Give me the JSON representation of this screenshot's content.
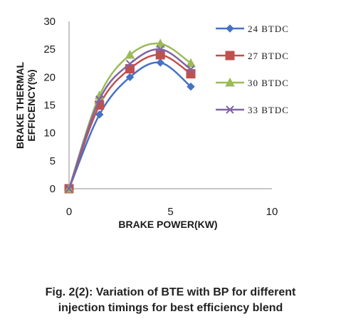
{
  "chart_data": {
    "type": "line",
    "title": "",
    "xlabel": "BRAKE POWER(KW)",
    "ylabel_lines": [
      "BRAKE THERMAL",
      "EFFICENCY(%)"
    ],
    "xlim": [
      0,
      10
    ],
    "ylim": [
      0,
      30
    ],
    "x_ticks": [
      "0",
      "5",
      "10"
    ],
    "y_ticks": [
      "0",
      "5",
      "10",
      "15",
      "20",
      "25",
      "30"
    ],
    "grid": false,
    "legend_position": "right",
    "series": [
      {
        "name": "24 BTDC",
        "color": "#4472C4",
        "marker": "diamond",
        "x": [
          0,
          1.5,
          3,
          4.5,
          6
        ],
        "y": [
          0,
          13.3,
          20,
          22.6,
          18.3
        ]
      },
      {
        "name": "27 BTDC",
        "color": "#C0504D",
        "marker": "square",
        "x": [
          0,
          1.5,
          3,
          4.5,
          6
        ],
        "y": [
          0,
          15,
          21.5,
          24,
          20.6
        ]
      },
      {
        "name": "30 BTDC",
        "color": "#9BBB59",
        "marker": "triangle",
        "x": [
          0,
          1.5,
          3,
          4.5,
          6
        ],
        "y": [
          0,
          16.7,
          24,
          26,
          22.5
        ]
      },
      {
        "name": "33 BTDC",
        "color": "#8064A2",
        "marker": "x",
        "x": [
          0,
          1.5,
          3,
          4.5,
          6
        ],
        "y": [
          0,
          16,
          22.4,
          25,
          21.4
        ]
      }
    ]
  },
  "caption": {
    "line1": "Fig. 2(2): Variation of BTE with BP for different",
    "line2": "injection timings for best efficiency blend"
  }
}
